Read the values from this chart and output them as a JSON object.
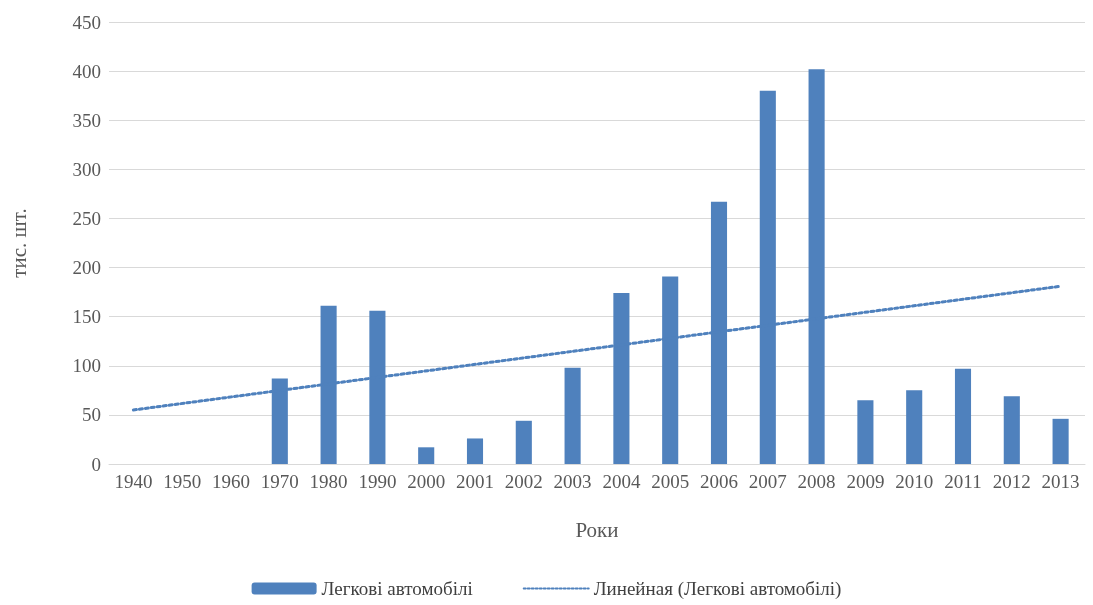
{
  "chart_data": {
    "type": "bar",
    "xlabel": "Роки",
    "ylabel": "тис. шт.",
    "categories": [
      "1940",
      "1950",
      "1960",
      "1970",
      "1980",
      "1990",
      "2000",
      "2001",
      "2002",
      "2003",
      "2004",
      "2005",
      "2006",
      "2007",
      "2008",
      "2009",
      "2010",
      "2011",
      "2012",
      "2013"
    ],
    "series": [
      {
        "name": "Легкові автомобілі",
        "color": "#4f81bd",
        "values": [
          null,
          null,
          null,
          87,
          161,
          156,
          17,
          26,
          44,
          98,
          174,
          191,
          267,
          380,
          402,
          65,
          75,
          97,
          69,
          46
        ]
      },
      {
        "name": "Линейная (Легкові автомобілі)",
        "type": "line",
        "line_style": "dotted",
        "marker": "none",
        "color": "#4f81bd",
        "values": [
          55,
          null,
          null,
          null,
          null,
          null,
          null,
          null,
          null,
          null,
          null,
          null,
          null,
          null,
          null,
          null,
          null,
          null,
          null,
          181
        ]
      }
    ],
    "ylim": [
      0,
      450
    ],
    "yticks": [
      0,
      50,
      100,
      150,
      200,
      250,
      300,
      350,
      400,
      450
    ],
    "grid": "y",
    "legend": "bottom"
  }
}
